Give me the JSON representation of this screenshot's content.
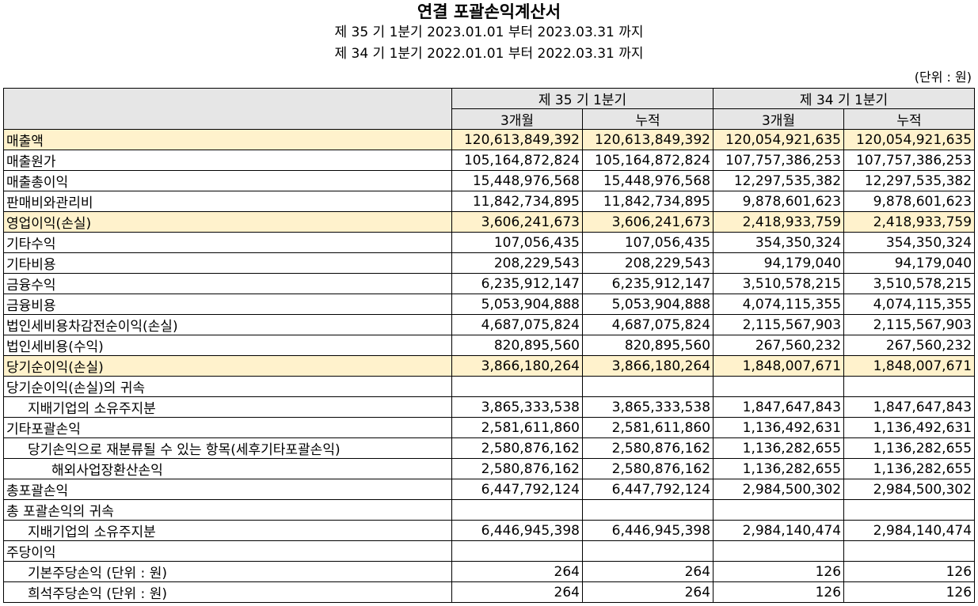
{
  "title": "연결 포괄손익계산서",
  "period1": "제 35 기 1분기 2023.01.01 부터 2023.03.31 까지",
  "period2": "제 34 기 1분기 2022.01.01 부터 2022.03.31 까지",
  "unit": "(단위 : 원)",
  "columns": {
    "p35": "제 35 기 1분기",
    "p34": "제 34 기 1분기",
    "q3m": "3개월",
    "cum": "누적"
  },
  "rows": [
    {
      "label": "매출액",
      "highlight": true,
      "indent": 0,
      "values": [
        "120,613,849,392",
        "120,613,849,392",
        "120,054,921,635",
        "120,054,921,635"
      ]
    },
    {
      "label": "매출원가",
      "highlight": false,
      "indent": 0,
      "values": [
        "105,164,872,824",
        "105,164,872,824",
        "107,757,386,253",
        "107,757,386,253"
      ]
    },
    {
      "label": "매출총이익",
      "highlight": false,
      "indent": 0,
      "values": [
        "15,448,976,568",
        "15,448,976,568",
        "12,297,535,382",
        "12,297,535,382"
      ]
    },
    {
      "label": "판매비와관리비",
      "highlight": false,
      "indent": 0,
      "values": [
        "11,842,734,895",
        "11,842,734,895",
        "9,878,601,623",
        "9,878,601,623"
      ]
    },
    {
      "label": "영업이익(손실)",
      "highlight": true,
      "indent": 0,
      "values": [
        "3,606,241,673",
        "3,606,241,673",
        "2,418,933,759",
        "2,418,933,759"
      ]
    },
    {
      "label": "기타수익",
      "highlight": false,
      "indent": 0,
      "values": [
        "107,056,435",
        "107,056,435",
        "354,350,324",
        "354,350,324"
      ]
    },
    {
      "label": "기타비용",
      "highlight": false,
      "indent": 0,
      "values": [
        "208,229,543",
        "208,229,543",
        "94,179,040",
        "94,179,040"
      ]
    },
    {
      "label": "금융수익",
      "highlight": false,
      "indent": 0,
      "values": [
        "6,235,912,147",
        "6,235,912,147",
        "3,510,578,215",
        "3,510,578,215"
      ]
    },
    {
      "label": "금융비용",
      "highlight": false,
      "indent": 0,
      "values": [
        "5,053,904,888",
        "5,053,904,888",
        "4,074,115,355",
        "4,074,115,355"
      ]
    },
    {
      "label": "법인세비용차감전순이익(손실)",
      "highlight": false,
      "indent": 0,
      "values": [
        "4,687,075,824",
        "4,687,075,824",
        "2,115,567,903",
        "2,115,567,903"
      ]
    },
    {
      "label": "법인세비용(수익)",
      "highlight": false,
      "indent": 0,
      "values": [
        "820,895,560",
        "820,895,560",
        "267,560,232",
        "267,560,232"
      ]
    },
    {
      "label": "당기순이익(손실)",
      "highlight": true,
      "indent": 0,
      "values": [
        "3,866,180,264",
        "3,866,180,264",
        "1,848,007,671",
        "1,848,007,671"
      ]
    },
    {
      "label": "당기순이익(손실)의 귀속",
      "highlight": false,
      "indent": 0,
      "values": [
        "",
        "",
        "",
        ""
      ]
    },
    {
      "label": "지배기업의 소유주지분",
      "highlight": false,
      "indent": 1,
      "values": [
        "3,865,333,538",
        "3,865,333,538",
        "1,847,647,843",
        "1,847,647,843"
      ]
    },
    {
      "label": "기타포괄손익",
      "highlight": false,
      "indent": 0,
      "values": [
        "2,581,611,860",
        "2,581,611,860",
        "1,136,492,631",
        "1,136,492,631"
      ]
    },
    {
      "label": "당기손익으로 재분류될 수 있는 항목(세후기타포괄손익)",
      "highlight": false,
      "indent": 1,
      "values": [
        "2,580,876,162",
        "2,580,876,162",
        "1,136,282,655",
        "1,136,282,655"
      ]
    },
    {
      "label": "해외사업장환산손익",
      "highlight": false,
      "indent": 2,
      "values": [
        "2,580,876,162",
        "2,580,876,162",
        "1,136,282,655",
        "1,136,282,655"
      ]
    },
    {
      "label": "총포괄손익",
      "highlight": false,
      "indent": 0,
      "values": [
        "6,447,792,124",
        "6,447,792,124",
        "2,984,500,302",
        "2,984,500,302"
      ]
    },
    {
      "label": "총 포괄손익의 귀속",
      "highlight": false,
      "indent": 0,
      "values": [
        "",
        "",
        "",
        ""
      ]
    },
    {
      "label": "지배기업의 소유주지분",
      "highlight": false,
      "indent": 1,
      "values": [
        "6,446,945,398",
        "6,446,945,398",
        "2,984,140,474",
        "2,984,140,474"
      ]
    },
    {
      "label": "주당이익",
      "highlight": false,
      "indent": 0,
      "values": [
        "",
        "",
        "",
        ""
      ]
    },
    {
      "label": "기본주당손익 (단위 : 원)",
      "highlight": false,
      "indent": 1,
      "values": [
        "264",
        "264",
        "126",
        "126"
      ]
    },
    {
      "label": "희석주당손익 (단위 : 원)",
      "highlight": false,
      "indent": 1,
      "values": [
        "264",
        "264",
        "126",
        "126"
      ]
    }
  ]
}
